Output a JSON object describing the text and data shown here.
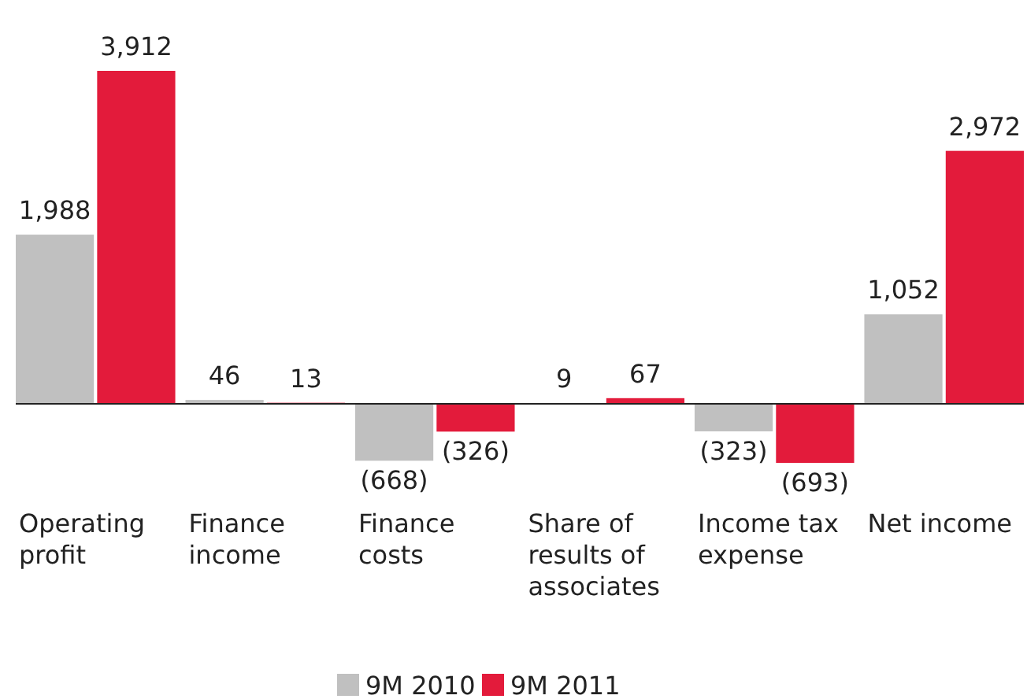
{
  "chart_data": {
    "type": "bar",
    "categories": [
      "Operating profit",
      "Finance income",
      "Finance costs",
      "Share of results of associates",
      "Income tax expense",
      "Net income"
    ],
    "series": [
      {
        "name": "9M 2010",
        "color": "#c0c0c0",
        "values": [
          1988,
          46,
          -668,
          9,
          -323,
          1052
        ],
        "value_labels": [
          "1,988",
          "46",
          "(668)",
          "9",
          "(323)",
          "1,052"
        ]
      },
      {
        "name": "9M 2011",
        "color": "#e31b3b",
        "values": [
          3912,
          13,
          -326,
          67,
          -693,
          2972
        ],
        "value_labels": [
          "3,912",
          "13",
          "(326)",
          "67",
          "(693)",
          "2,972"
        ]
      }
    ],
    "legend": "bottom"
  }
}
